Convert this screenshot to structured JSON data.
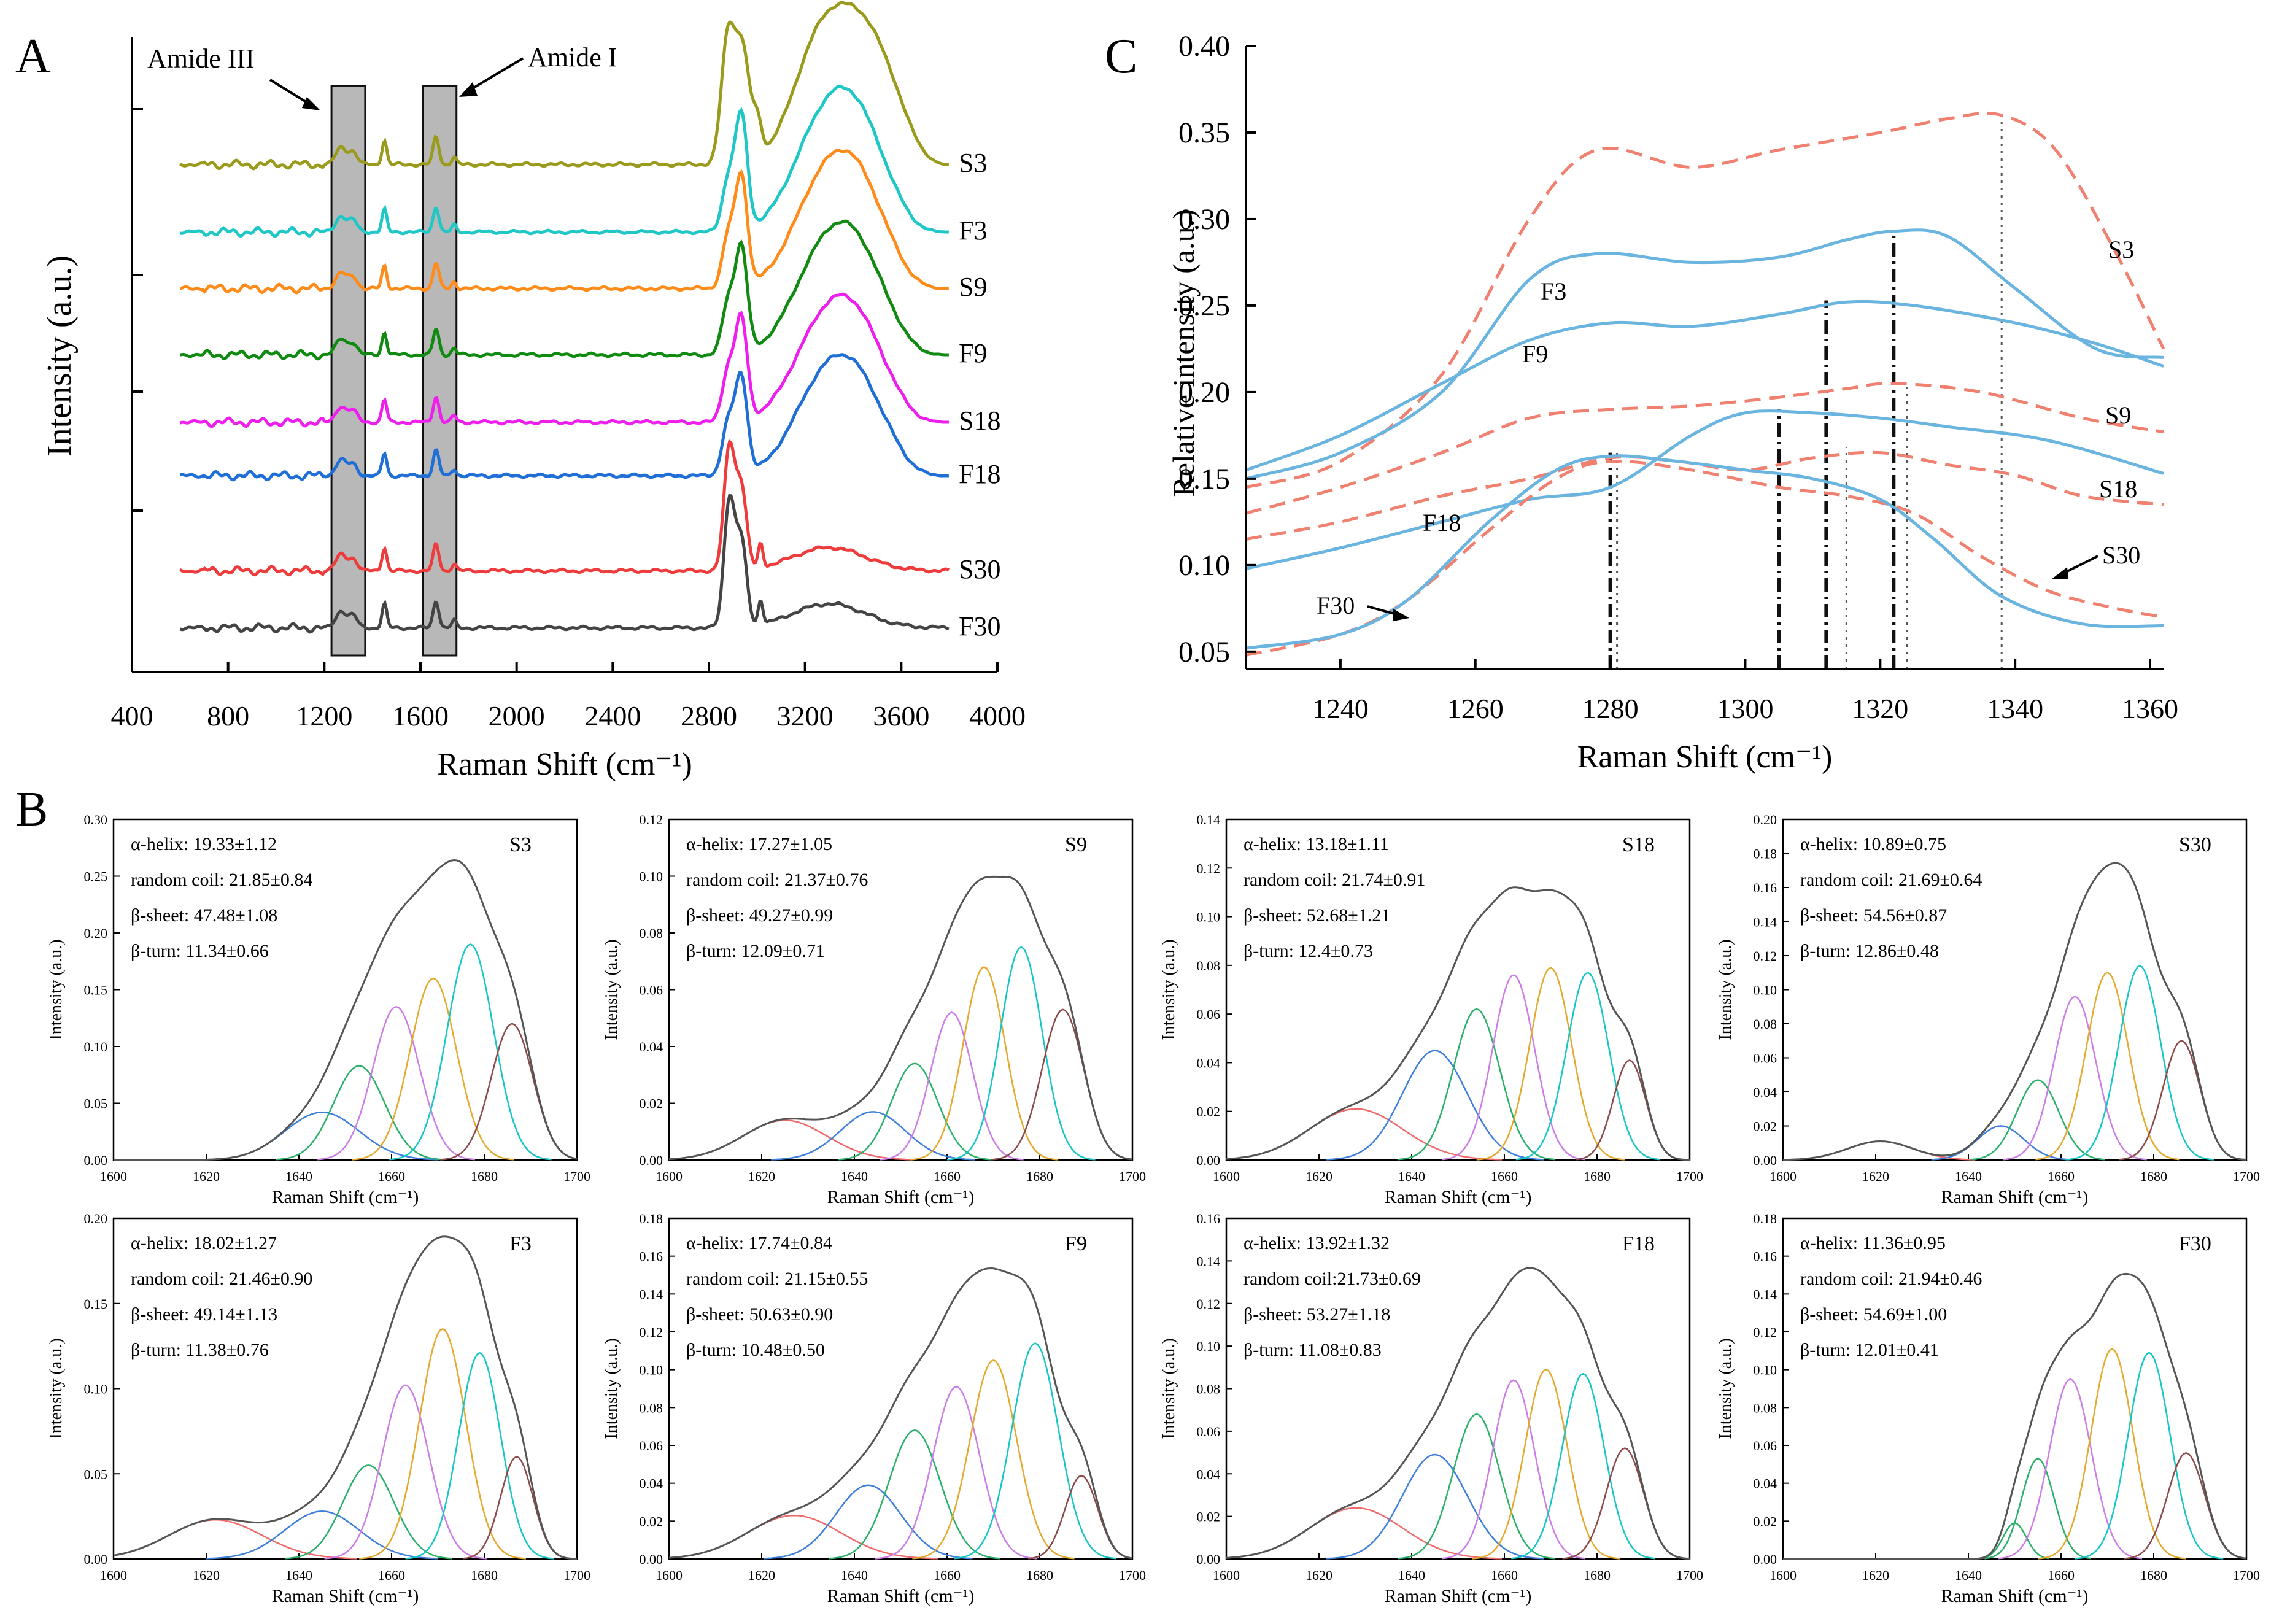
{
  "chart_data": [
    {
      "id": "A",
      "type": "line",
      "panel_letter": "A",
      "title": "",
      "xlabel": "Raman Shift (cm⁻¹)",
      "ylabel": "Intensity (a.u.)",
      "xlim": [
        400,
        4000
      ],
      "xticks": [
        "400",
        "800",
        "1200",
        "1600",
        "2000",
        "2400",
        "2800",
        "3200",
        "3600",
        "4000"
      ],
      "annotations": [
        "Amide III",
        "Amide I"
      ],
      "shaded_regions": [
        [
          1230,
          1370
        ],
        [
          1610,
          1750
        ]
      ],
      "series": [
        {
          "name": "S3",
          "color": "#9a9a1c"
        },
        {
          "name": "F3",
          "color": "#1fc7c7"
        },
        {
          "name": "S9",
          "color": "#ff8c1a"
        },
        {
          "name": "F9",
          "color": "#118a11"
        },
        {
          "name": "S18",
          "color": "#ee1fee"
        },
        {
          "name": "F18",
          "color": "#1f6fd6"
        },
        {
          "name": "S30",
          "color": "#ee3b3b"
        },
        {
          "name": "F30",
          "color": "#444444"
        }
      ]
    },
    {
      "id": "C",
      "type": "line",
      "panel_letter": "C",
      "xlabel": "Raman Shift (cm⁻¹)",
      "ylabel": "Relative intensity (a.u.)",
      "xlim": [
        1226,
        1362
      ],
      "ylim": [
        0.04,
        0.4
      ],
      "xticks": [
        "1240",
        "1260",
        "1280",
        "1300",
        "1320",
        "1340",
        "1360"
      ],
      "yticks": [
        "0.05",
        "0.10",
        "0.15",
        "0.20",
        "0.25",
        "0.30",
        "0.35",
        "0.40"
      ],
      "vlines": [
        1280,
        1281,
        1305,
        1312,
        1315,
        1322,
        1324,
        1338
      ],
      "series": [
        {
          "name": "S3",
          "style": "dashed",
          "color": "#f08070",
          "x": [
            1226,
            1240,
            1255,
            1268,
            1278,
            1292,
            1305,
            1320,
            1330,
            1338,
            1346,
            1355,
            1362
          ],
          "y": [
            0.145,
            0.16,
            0.21,
            0.3,
            0.34,
            0.33,
            0.34,
            0.35,
            0.358,
            0.36,
            0.34,
            0.28,
            0.225
          ]
        },
        {
          "name": "F3",
          "style": "solid",
          "color": "#6ab4e0",
          "x": [
            1226,
            1240,
            1255,
            1268,
            1278,
            1292,
            1305,
            1315,
            1322,
            1330,
            1340,
            1352,
            1362
          ],
          "y": [
            0.15,
            0.165,
            0.2,
            0.265,
            0.28,
            0.275,
            0.278,
            0.288,
            0.293,
            0.29,
            0.26,
            0.225,
            0.22
          ]
        },
        {
          "name": "F9",
          "style": "solid",
          "color": "#6ab4e0",
          "x": [
            1226,
            1240,
            1255,
            1268,
            1280,
            1292,
            1305,
            1315,
            1325,
            1340,
            1352,
            1362
          ],
          "y": [
            0.155,
            0.175,
            0.205,
            0.23,
            0.24,
            0.238,
            0.245,
            0.252,
            0.25,
            0.24,
            0.228,
            0.215
          ]
        },
        {
          "name": "S9",
          "style": "dashed",
          "color": "#f08070",
          "x": [
            1226,
            1240,
            1255,
            1268,
            1280,
            1292,
            1305,
            1315,
            1322,
            1335,
            1350,
            1362
          ],
          "y": [
            0.13,
            0.145,
            0.165,
            0.185,
            0.19,
            0.192,
            0.197,
            0.202,
            0.205,
            0.2,
            0.185,
            0.177
          ]
        },
        {
          "name": "S18",
          "style": "dashed",
          "color": "#f08070",
          "x": [
            1226,
            1240,
            1255,
            1268,
            1280,
            1290,
            1300,
            1310,
            1320,
            1330,
            1340,
            1350,
            1362
          ],
          "y": [
            0.115,
            0.125,
            0.14,
            0.15,
            0.162,
            0.16,
            0.155,
            0.162,
            0.165,
            0.158,
            0.152,
            0.14,
            0.135
          ]
        },
        {
          "name": "F18",
          "style": "solid",
          "color": "#6ab4e0",
          "x": [
            1226,
            1240,
            1255,
            1268,
            1280,
            1292,
            1300,
            1310,
            1320,
            1330,
            1345,
            1362
          ],
          "y": [
            0.098,
            0.11,
            0.125,
            0.138,
            0.145,
            0.175,
            0.188,
            0.188,
            0.185,
            0.18,
            0.172,
            0.153
          ]
        },
        {
          "name": "S30",
          "style": "dashed",
          "color": "#f08070",
          "x": [
            1226,
            1240,
            1250,
            1262,
            1272,
            1280,
            1292,
            1305,
            1315,
            1325,
            1335,
            1345,
            1355,
            1362
          ],
          "y": [
            0.048,
            0.06,
            0.08,
            0.12,
            0.15,
            0.16,
            0.155,
            0.145,
            0.14,
            0.13,
            0.105,
            0.085,
            0.075,
            0.07
          ]
        },
        {
          "name": "F30",
          "style": "solid",
          "color": "#6ab4e0",
          "x": [
            1226,
            1240,
            1250,
            1262,
            1272,
            1280,
            1290,
            1300,
            1310,
            1320,
            1328,
            1338,
            1350,
            1362
          ],
          "y": [
            0.052,
            0.06,
            0.08,
            0.125,
            0.155,
            0.163,
            0.16,
            0.155,
            0.15,
            0.138,
            0.115,
            0.082,
            0.066,
            0.065
          ]
        }
      ]
    },
    {
      "id": "B",
      "type": "line",
      "panel_letter": "B",
      "xlabel": "Raman Shift (cm⁻¹)",
      "ylabel": "Intensity (a.u.)",
      "xticks": [
        "1600",
        "1620",
        "1640",
        "1660",
        "1680",
        "1700"
      ],
      "component_colors": [
        "#ef6b6b",
        "#3f7fdc",
        "#2bb06a",
        "#cc7ee6",
        "#e4a92f",
        "#17c6c6",
        "#8b4a4a"
      ],
      "envelope_color": "#555555",
      "subplots": [
        {
          "name": "S3",
          "ymax": 0.3,
          "ytick_step": 0.05,
          "yticks": [
            "0.00",
            "0.05",
            "0.10",
            "0.15",
            "0.20",
            "0.25",
            "0.30"
          ],
          "stats": [
            "α-helix: 19.33±1.12",
            "random coil: 21.85±0.84",
            "β-sheet: 47.48±1.08",
            "β-turn: 11.34±0.66"
          ],
          "peaks": [
            {
              "c": 1645,
              "h": 0.042,
              "w": 8
            },
            {
              "c": 1653,
              "h": 0.083,
              "w": 5.5
            },
            {
              "c": 1661,
              "h": 0.135,
              "w": 5
            },
            {
              "c": 1669,
              "h": 0.16,
              "w": 5
            },
            {
              "c": 1677,
              "h": 0.19,
              "w": 5
            },
            {
              "c": 1686,
              "h": 0.12,
              "w": 4.5
            }
          ]
        },
        {
          "name": "S9",
          "ymax": 0.12,
          "ytick_step": 0.02,
          "yticks": [
            "0.00",
            "0.02",
            "0.04",
            "0.06",
            "0.08",
            "0.10",
            "0.12"
          ],
          "stats": [
            "α-helix: 17.27±1.05",
            "random coil: 21.37±0.76",
            "β-sheet: 49.27±0.99",
            "β-turn: 12.09±0.71"
          ],
          "peaks": [
            {
              "c": 1625,
              "h": 0.014,
              "w": 9
            },
            {
              "c": 1644,
              "h": 0.017,
              "w": 7
            },
            {
              "c": 1653,
              "h": 0.034,
              "w": 5
            },
            {
              "c": 1661,
              "h": 0.052,
              "w": 4.5
            },
            {
              "c": 1668,
              "h": 0.068,
              "w": 4.5
            },
            {
              "c": 1676,
              "h": 0.075,
              "w": 4.5
            },
            {
              "c": 1685,
              "h": 0.053,
              "w": 4.5
            }
          ]
        },
        {
          "name": "S18",
          "ymax": 0.14,
          "ytick_step": 0.02,
          "yticks": [
            "0.00",
            "0.02",
            "0.04",
            "0.06",
            "0.08",
            "0.10",
            "0.12",
            "0.14"
          ],
          "stats": [
            "α-helix: 13.18±1.11",
            "random coil: 21.74±0.91",
            "β-sheet: 52.68±1.21",
            "β-turn: 12.4±0.73"
          ],
          "peaks": [
            {
              "c": 1628,
              "h": 0.021,
              "w": 10
            },
            {
              "c": 1645,
              "h": 0.045,
              "w": 7
            },
            {
              "c": 1654,
              "h": 0.062,
              "w": 5
            },
            {
              "c": 1662,
              "h": 0.076,
              "w": 4.5
            },
            {
              "c": 1670,
              "h": 0.079,
              "w": 4.5
            },
            {
              "c": 1678,
              "h": 0.077,
              "w": 4.5
            },
            {
              "c": 1687,
              "h": 0.041,
              "w": 3.5
            }
          ]
        },
        {
          "name": "S30",
          "ymax": 0.2,
          "ytick_step": 0.02,
          "yticks": [
            "0.00",
            "0.02",
            "0.04",
            "0.06",
            "0.08",
            "0.10",
            "0.12",
            "0.14",
            "0.16",
            "0.18",
            "0.20"
          ],
          "stats": [
            "α-helix: 10.89±0.75",
            "random coil: 21.69±0.64",
            "β-sheet: 54.56±0.87",
            "β-turn: 12.86±0.48"
          ],
          "peaks": [
            {
              "c": 1621,
              "h": 0.011,
              "w": 7
            },
            {
              "c": 1647,
              "h": 0.02,
              "w": 5
            },
            {
              "c": 1655,
              "h": 0.047,
              "w": 4.5
            },
            {
              "c": 1663,
              "h": 0.096,
              "w": 4.5
            },
            {
              "c": 1670,
              "h": 0.11,
              "w": 4.5
            },
            {
              "c": 1677,
              "h": 0.114,
              "w": 4.5
            },
            {
              "c": 1686,
              "h": 0.07,
              "w": 4
            }
          ]
        },
        {
          "name": "F3",
          "ymax": 0.2,
          "ytick_step": 0.05,
          "yticks": [
            "0.00",
            "0.05",
            "0.10",
            "0.15",
            "0.20"
          ],
          "stats": [
            "α-helix: 18.02±1.27",
            "random coil: 21.46±0.90",
            "β-sheet: 49.14±1.13",
            "β-turn: 11.38±0.76"
          ],
          "peaks": [
            {
              "c": 1622,
              "h": 0.023,
              "w": 10
            },
            {
              "c": 1645,
              "h": 0.028,
              "w": 8
            },
            {
              "c": 1655,
              "h": 0.055,
              "w": 5.5
            },
            {
              "c": 1663,
              "h": 0.102,
              "w": 5
            },
            {
              "c": 1671,
              "h": 0.135,
              "w": 5
            },
            {
              "c": 1679,
              "h": 0.121,
              "w": 4.5
            },
            {
              "c": 1687,
              "h": 0.06,
              "w": 3.5
            }
          ]
        },
        {
          "name": "F9",
          "ymax": 0.18,
          "ytick_step": 0.02,
          "yticks": [
            "0.00",
            "0.02",
            "0.04",
            "0.06",
            "0.08",
            "0.10",
            "0.12",
            "0.14",
            "0.16",
            "0.18"
          ],
          "stats": [
            "α-helix: 17.74±0.84",
            "random coil: 21.15±0.55",
            "β-sheet: 50.63±0.90",
            "β-turn: 10.48±0.50"
          ],
          "peaks": [
            {
              "c": 1627,
              "h": 0.023,
              "w": 10
            },
            {
              "c": 1643,
              "h": 0.039,
              "w": 7
            },
            {
              "c": 1653,
              "h": 0.068,
              "w": 5.5
            },
            {
              "c": 1662,
              "h": 0.091,
              "w": 5
            },
            {
              "c": 1670,
              "h": 0.105,
              "w": 5
            },
            {
              "c": 1679,
              "h": 0.114,
              "w": 5
            },
            {
              "c": 1689,
              "h": 0.044,
              "w": 3.5
            }
          ]
        },
        {
          "name": "F18",
          "ymax": 0.16,
          "ytick_step": 0.02,
          "yticks": [
            "0.00",
            "0.02",
            "0.04",
            "0.06",
            "0.08",
            "0.10",
            "0.12",
            "0.14",
            "0.16"
          ],
          "stats": [
            "α-helix: 13.92±1.32",
            "random coil:21.73±0.69",
            "β-sheet: 53.27±1.18",
            "β-turn: 11.08±0.83"
          ],
          "peaks": [
            {
              "c": 1628,
              "h": 0.024,
              "w": 10
            },
            {
              "c": 1645,
              "h": 0.049,
              "w": 7
            },
            {
              "c": 1654,
              "h": 0.068,
              "w": 5
            },
            {
              "c": 1662,
              "h": 0.084,
              "w": 4.5
            },
            {
              "c": 1669,
              "h": 0.089,
              "w": 4.5
            },
            {
              "c": 1677,
              "h": 0.087,
              "w": 4.5
            },
            {
              "c": 1686,
              "h": 0.052,
              "w": 4
            }
          ]
        },
        {
          "name": "F30",
          "ymax": 0.18,
          "ytick_step": 0.02,
          "yticks": [
            "0.00",
            "0.02",
            "0.04",
            "0.06",
            "0.08",
            "0.10",
            "0.12",
            "0.14",
            "0.16",
            "0.18"
          ],
          "stats": [
            "α-helix: 11.36±0.95",
            "random coil: 21.94±0.46",
            "β-sheet: 54.69±1.00",
            "β-turn: 12.01±0.41"
          ],
          "peaks": [
            {
              "c": 1650,
              "h": 0.019,
              "w": 2.5
            },
            {
              "c": 1655,
              "h": 0.053,
              "w": 3.5
            },
            {
              "c": 1662,
              "h": 0.095,
              "w": 4.5
            },
            {
              "c": 1671,
              "h": 0.111,
              "w": 4.5
            },
            {
              "c": 1679,
              "h": 0.109,
              "w": 4.5
            },
            {
              "c": 1687,
              "h": 0.056,
              "w": 4
            }
          ]
        }
      ]
    }
  ]
}
